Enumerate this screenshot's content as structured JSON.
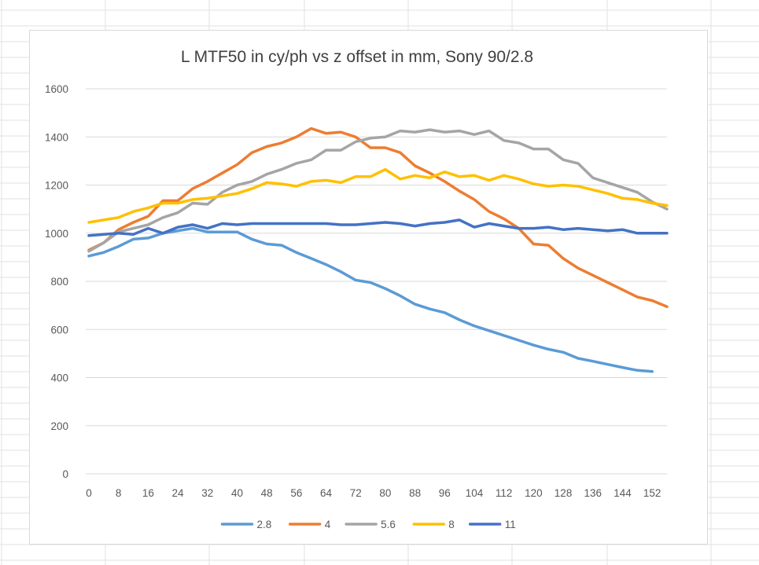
{
  "chart_data": {
    "type": "line",
    "title": "L MTF50 in cy/ph vs z offset in mm, Sony 90/2.8",
    "xlabel": "",
    "ylabel": "",
    "ylim": [
      0,
      1600
    ],
    "yticks": [
      0,
      200,
      400,
      600,
      800,
      1000,
      1200,
      1400,
      1600
    ],
    "xticks": [
      0,
      8,
      16,
      24,
      32,
      40,
      48,
      56,
      64,
      72,
      80,
      88,
      96,
      104,
      112,
      120,
      128,
      136,
      144,
      152
    ],
    "x": [
      0,
      4,
      8,
      12,
      16,
      20,
      24,
      28,
      32,
      36,
      40,
      44,
      48,
      52,
      56,
      60,
      64,
      68,
      72,
      76,
      80,
      84,
      88,
      92,
      96,
      100,
      104,
      108,
      112,
      116,
      120,
      124,
      128,
      132,
      136,
      140,
      144,
      148,
      152,
      156
    ],
    "grid": true,
    "legend": "bottom",
    "series": [
      {
        "name": "2.8",
        "color": "#5B9BD5",
        "values": [
          905,
          920,
          945,
          975,
          980,
          1000,
          1010,
          1020,
          1005,
          1005,
          1005,
          975,
          955,
          950,
          920,
          895,
          870,
          840,
          805,
          795,
          770,
          740,
          705,
          685,
          670,
          640,
          615,
          595,
          575,
          555,
          535,
          518,
          505,
          480,
          468,
          455,
          442,
          430,
          425,
          null
        ]
      },
      {
        "name": "4",
        "color": "#ED7D31",
        "values": [
          930,
          960,
          1015,
          1045,
          1070,
          1135,
          1135,
          1185,
          1215,
          1250,
          1285,
          1335,
          1360,
          1375,
          1400,
          1435,
          1415,
          1420,
          1400,
          1355,
          1355,
          1335,
          1280,
          1250,
          1215,
          1175,
          1140,
          1090,
          1060,
          1020,
          955,
          950,
          895,
          855,
          825,
          795,
          765,
          735,
          720,
          695
        ]
      },
      {
        "name": "5.6",
        "color": "#A5A5A5",
        "values": [
          925,
          960,
          1005,
          1020,
          1035,
          1065,
          1085,
          1125,
          1120,
          1170,
          1200,
          1215,
          1245,
          1265,
          1290,
          1305,
          1345,
          1345,
          1380,
          1395,
          1400,
          1425,
          1420,
          1430,
          1420,
          1425,
          1410,
          1425,
          1385,
          1375,
          1350,
          1350,
          1305,
          1290,
          1230,
          1210,
          1190,
          1170,
          1130,
          1100
        ]
      },
      {
        "name": "8",
        "color": "#FFC000",
        "values": [
          1045,
          1055,
          1065,
          1090,
          1105,
          1125,
          1125,
          1140,
          1145,
          1155,
          1165,
          1185,
          1210,
          1205,
          1195,
          1215,
          1220,
          1210,
          1235,
          1235,
          1265,
          1225,
          1240,
          1230,
          1255,
          1235,
          1240,
          1220,
          1240,
          1225,
          1205,
          1195,
          1200,
          1195,
          1180,
          1165,
          1145,
          1140,
          1125,
          1115
        ]
      },
      {
        "name": "11",
        "color": "#4472C4",
        "values": [
          990,
          995,
          1000,
          995,
          1020,
          1000,
          1025,
          1035,
          1020,
          1040,
          1035,
          1040,
          1040,
          1040,
          1040,
          1040,
          1040,
          1035,
          1035,
          1040,
          1045,
          1040,
          1030,
          1040,
          1045,
          1055,
          1025,
          1040,
          1030,
          1020,
          1020,
          1025,
          1015,
          1020,
          1015,
          1010,
          1015,
          1000,
          1000,
          1000
        ]
      }
    ]
  }
}
